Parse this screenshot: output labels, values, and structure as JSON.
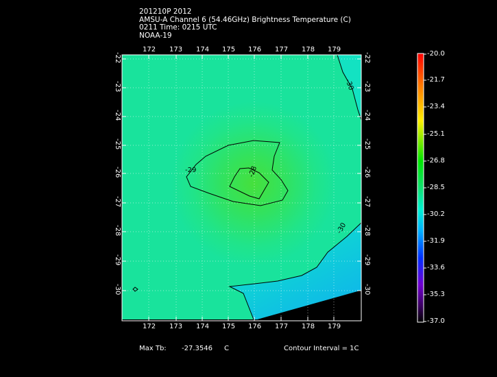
{
  "header": {
    "line1": "201210P 2012",
    "line2": "AMSU-A Channel 6 (54.46GHz) Brightness Temperature (C)",
    "line3": "0211 Time: 0215 UTC",
    "line4": "NOAA-19"
  },
  "map": {
    "lon_ticks": [
      "172",
      "173",
      "174",
      "175",
      "176",
      "177",
      "178",
      "179"
    ],
    "lat_ticks": [
      "-22",
      "-23",
      "-24",
      "-25",
      "-26",
      "-27",
      "-28",
      "-29",
      "-30"
    ],
    "contour_labels": {
      "c29": "-29",
      "c28": "-28",
      "c30a": "-30",
      "c30b": "-30"
    }
  },
  "colorbar": {
    "labels": [
      "-20.0",
      "-21.7",
      "-23.4",
      "-25.1",
      "-26.8",
      "-28.5",
      "-30.2",
      "-31.9",
      "-33.6",
      "-35.3",
      "-37.0"
    ]
  },
  "footer": {
    "max_tb_label": "Max Tb:",
    "max_tb_value": "-27.3546",
    "max_tb_unit": "C",
    "contour_interval": "Contour Interval = 1C"
  }
}
